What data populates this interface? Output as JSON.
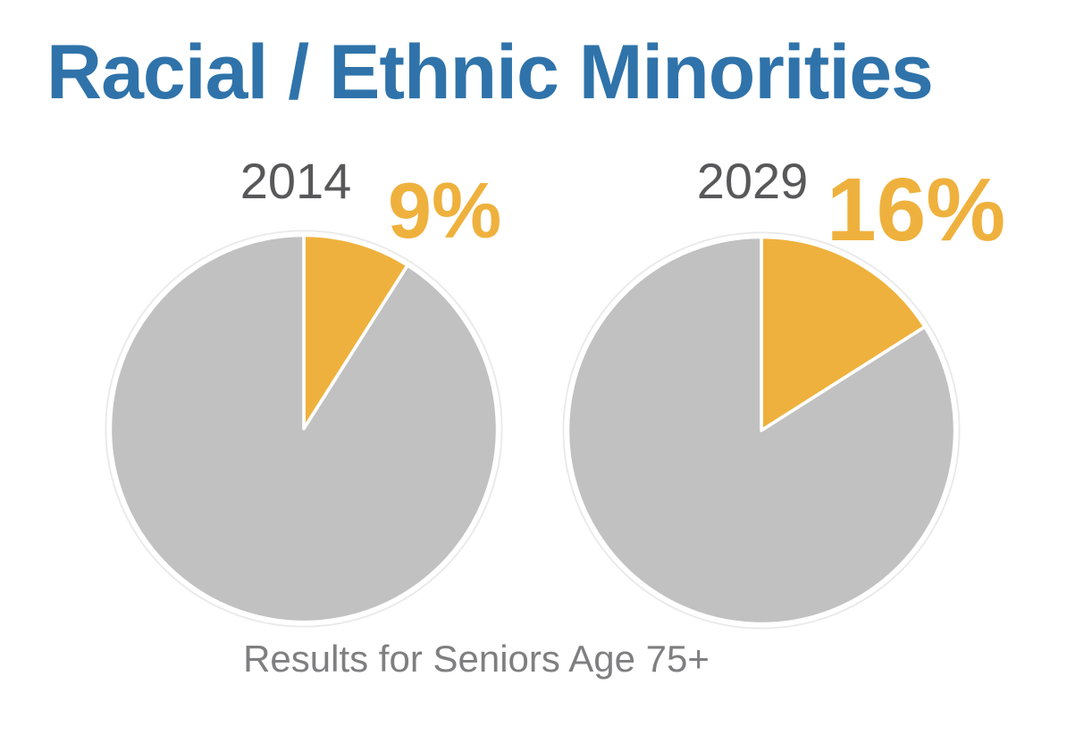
{
  "title": "Racial / Ethnic Minorities",
  "caption": "Results for Seniors Age 75+",
  "colors": {
    "title_blue": "#2F73AA",
    "minority_orange": "#EFB13D",
    "majority_gray": "#C1C1C2",
    "year_gray": "#58585A",
    "caption_gray": "#7F7F81",
    "slice_gap_white": "#FFFFFF"
  },
  "chart_data": {
    "type": "pie",
    "title": "Racial / Ethnic Minorities",
    "subtitle": "Results for Seniors Age 75+",
    "legend_position": "none",
    "pies": [
      {
        "year_label": "2014",
        "pct_label": "9%",
        "slices": [
          {
            "name": "Racial / Ethnic Minorities",
            "value": 9,
            "color": "#EFB13D"
          },
          {
            "name": "Other",
            "value": 91,
            "color": "#C1C1C2"
          }
        ],
        "start_angle_deg": 0,
        "direction": "clockwise"
      },
      {
        "year_label": "2029",
        "pct_label": "16%",
        "slices": [
          {
            "name": "Racial / Ethnic Minorities",
            "value": 16,
            "color": "#EFB13D"
          },
          {
            "name": "Other",
            "value": 84,
            "color": "#C1C1C2"
          }
        ],
        "start_angle_deg": 0,
        "direction": "clockwise"
      }
    ]
  }
}
